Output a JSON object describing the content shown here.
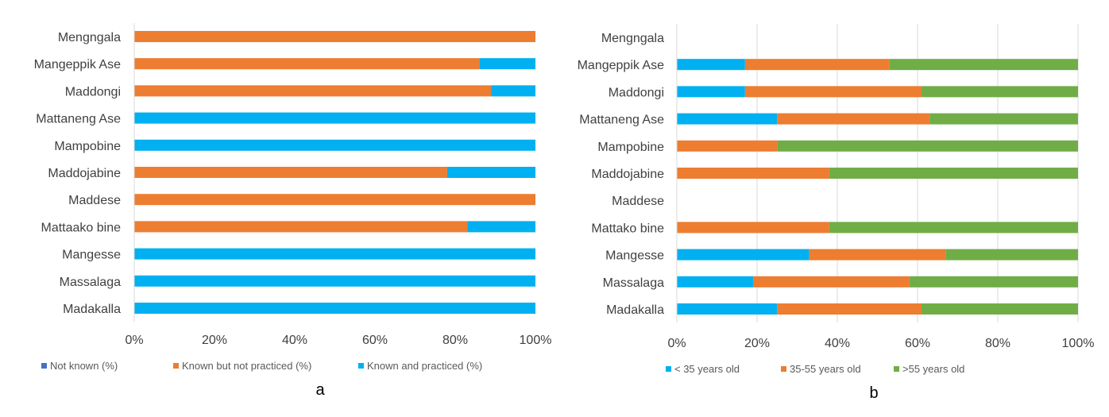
{
  "colors": {
    "not_known": "#4472C4",
    "known_not_practiced": "#ED7D31",
    "known_practiced": "#00B0F0",
    "lt35": "#00B0F0",
    "mid": "#ED7D31",
    "gt55": "#70AD47",
    "grid": "#D9D9D9",
    "text": "#404040"
  },
  "chart_data": [
    {
      "type": "bar",
      "orientation": "horizontal",
      "stacked": "percent",
      "panel_label": "a",
      "categories": [
        "Mengngala",
        "Mangeppik Ase",
        "Maddongi",
        "Mattaneng Ase",
        "Mampobine",
        "Maddojabine",
        "Maddese",
        "Mattaako bine",
        "Mangesse",
        "Massalaga",
        "Madakalla"
      ],
      "series": [
        {
          "name": "Not known (%)",
          "values": [
            0,
            0,
            0,
            0,
            0,
            0,
            0,
            0,
            0,
            0,
            0
          ]
        },
        {
          "name": "Known but not practiced (%)",
          "values": [
            100,
            86,
            89,
            0,
            0,
            78,
            100,
            83,
            0,
            0,
            0
          ]
        },
        {
          "name": "Known and practiced (%)",
          "values": [
            0,
            14,
            11,
            100,
            100,
            22,
            0,
            17,
            100,
            100,
            100
          ]
        }
      ],
      "xticks": [
        "0%",
        "20%",
        "40%",
        "60%",
        "80%",
        "100%"
      ],
      "xlim": [
        0,
        100
      ],
      "grid": false,
      "legend": "bottom"
    },
    {
      "type": "bar",
      "orientation": "horizontal",
      "stacked": "percent",
      "panel_label": "b",
      "categories": [
        "Mengngala",
        "Mangeppik Ase",
        "Maddongi",
        "Mattaneng Ase",
        "Mampobine",
        "Maddojabine",
        "Maddese",
        "Mattako bine",
        "Mangesse",
        "Massalaga",
        "Madakalla"
      ],
      "series": [
        {
          "name": "< 35 years old",
          "values": [
            0,
            17,
            17,
            25,
            0,
            0,
            0,
            0,
            33,
            19,
            25
          ]
        },
        {
          "name": "35-55 years old",
          "values": [
            0,
            36,
            44,
            38,
            25,
            38,
            0,
            38,
            34,
            39,
            36
          ]
        },
        {
          "name": ">55 years old",
          "values": [
            0,
            47,
            39,
            37,
            75,
            62,
            0,
            62,
            33,
            42,
            39
          ]
        }
      ],
      "xticks": [
        "0%",
        "20%",
        "40%",
        "60%",
        "80%",
        "100%"
      ],
      "xlim": [
        0,
        100
      ],
      "grid": true,
      "legend": "bottom"
    }
  ]
}
